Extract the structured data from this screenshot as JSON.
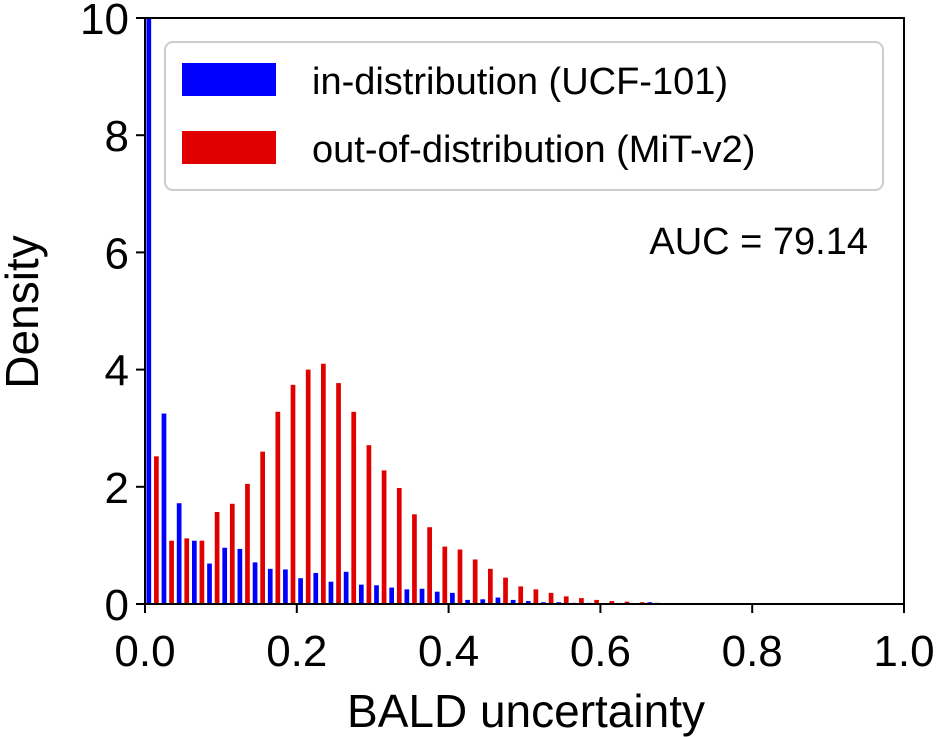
{
  "chart_data": {
    "type": "bar",
    "subtype": "grouped-histogram",
    "xlabel": "BALD uncertainty",
    "ylabel": "Density",
    "xlim": [
      0.0,
      1.0
    ],
    "ylim": [
      0,
      10
    ],
    "xticks": [
      "0.0",
      "0.2",
      "0.4",
      "0.6",
      "0.8",
      "1.0"
    ],
    "yticks": [
      "0",
      "2",
      "4",
      "6",
      "8",
      "10"
    ],
    "grid": false,
    "legend_position": "upper-right",
    "annotation": "AUC = 79.14",
    "bin_width": 0.02,
    "bin_starts": [
      0.0,
      0.02,
      0.04,
      0.06,
      0.08,
      0.1,
      0.12,
      0.14,
      0.16,
      0.18,
      0.2,
      0.22,
      0.24,
      0.26,
      0.28,
      0.3,
      0.32,
      0.34,
      0.36,
      0.38,
      0.4,
      0.42,
      0.44,
      0.46,
      0.48,
      0.5,
      0.52,
      0.54,
      0.56,
      0.58,
      0.6,
      0.62,
      0.64,
      0.66,
      0.68,
      0.7,
      0.72,
      0.74,
      0.76,
      0.78
    ],
    "series": [
      {
        "name": "in-distribution (UCF-101)",
        "color": "#0000ff",
        "values": [
          10.0,
          3.25,
          1.72,
          1.08,
          0.69,
          0.96,
          0.94,
          0.71,
          0.6,
          0.59,
          0.44,
          0.53,
          0.38,
          0.55,
          0.33,
          0.32,
          0.28,
          0.25,
          0.26,
          0.21,
          0.19,
          0.07,
          0.08,
          0.11,
          0.07,
          0.05,
          0.03,
          0.03,
          0.02,
          0.02,
          0.01,
          0.01,
          0.01,
          0.03,
          0.01,
          0.0,
          0.0,
          0.01,
          0.0,
          0.0
        ]
      },
      {
        "name": "out-of-distribution (MiT-v2)",
        "color": "#e00000",
        "values": [
          2.52,
          1.08,
          1.12,
          1.08,
          1.57,
          1.71,
          2.05,
          2.6,
          3.28,
          3.74,
          4.0,
          4.1,
          3.77,
          3.28,
          2.71,
          2.28,
          1.98,
          1.53,
          1.31,
          0.98,
          0.93,
          0.76,
          0.6,
          0.45,
          0.3,
          0.25,
          0.19,
          0.13,
          0.1,
          0.07,
          0.05,
          0.04,
          0.03,
          0.02,
          0.01,
          0.01,
          0.01,
          0.0,
          0.0,
          0.0
        ]
      }
    ]
  }
}
